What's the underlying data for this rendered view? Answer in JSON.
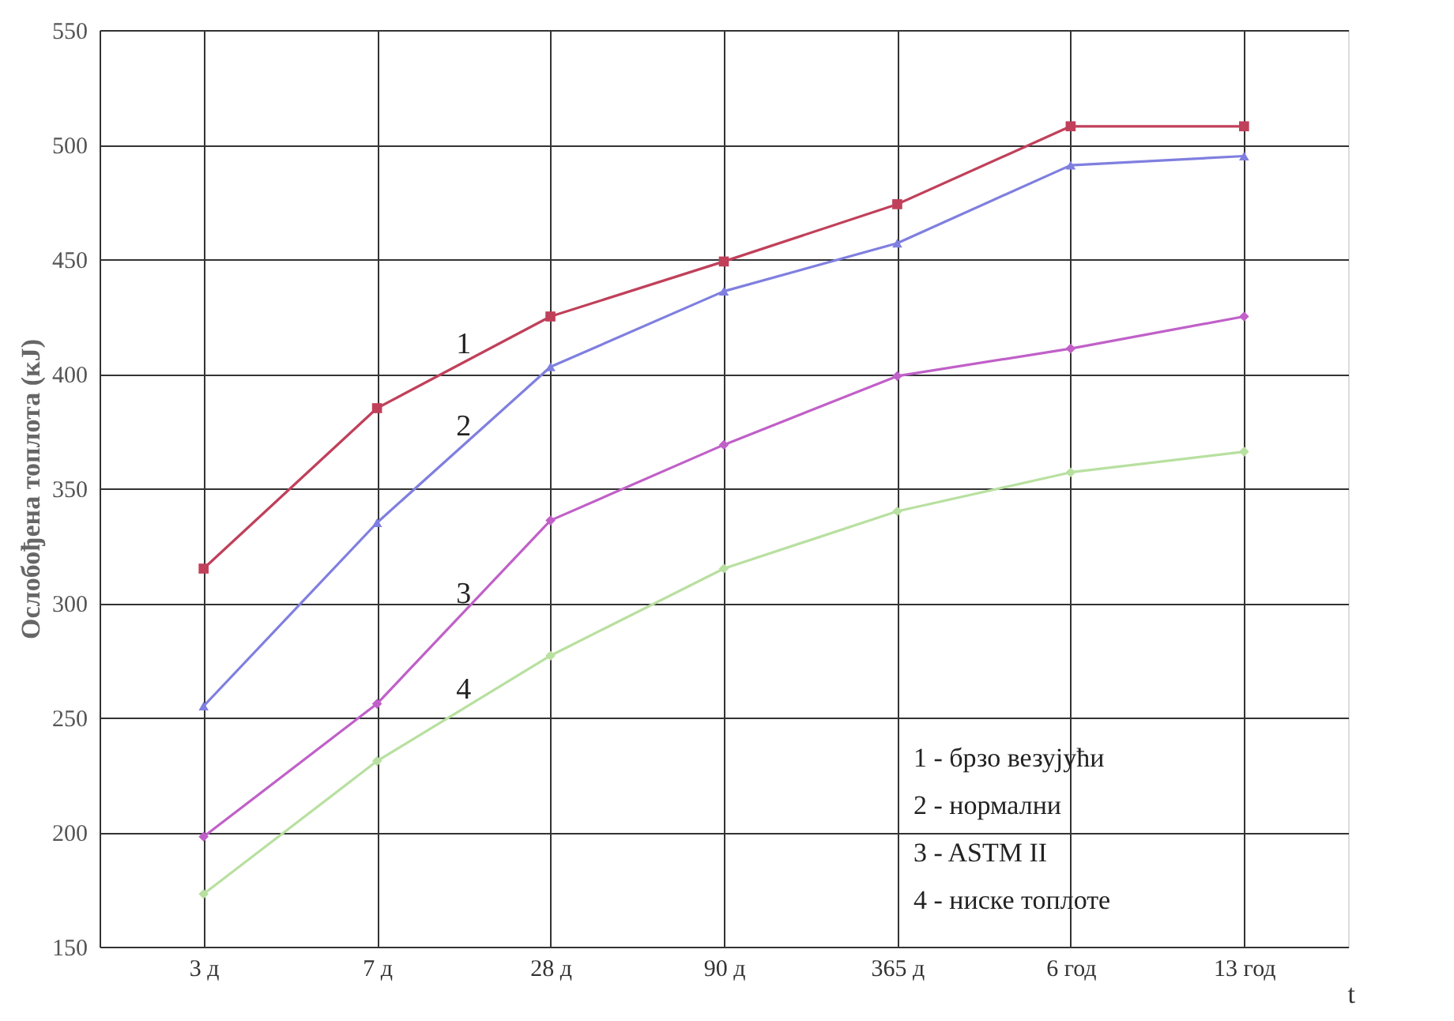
{
  "chart_data": {
    "type": "line",
    "ylabel": "Ослобођена топлота (кЈ)",
    "xlabel": "t",
    "categories": [
      "3 д",
      "7 д",
      "28 д",
      "90 д",
      "365 д",
      "6 год",
      "13 год"
    ],
    "series": [
      {
        "color": "#c0405a",
        "marker": "square",
        "values": [
          315,
          385,
          425,
          449,
          474,
          508,
          508
        ]
      },
      {
        "color": "#7f7fe0",
        "marker": "triangle",
        "values": [
          255,
          335,
          403,
          436,
          457,
          491,
          495
        ]
      },
      {
        "color": "#c060c8",
        "marker": "diamond",
        "values": [
          198,
          256,
          336,
          369,
          399,
          411,
          425
        ]
      },
      {
        "color": "#b8e0a0",
        "marker": "diamond",
        "values": [
          173,
          231,
          277,
          315,
          340,
          357,
          366
        ]
      }
    ],
    "ylim": [
      150,
      550
    ],
    "yticks": [
      150,
      200,
      250,
      300,
      350,
      400,
      450,
      500,
      550
    ],
    "grid": true,
    "line_style": "solid",
    "annotations": [
      {
        "text": "1",
        "y": 405
      },
      {
        "text": "2",
        "y": 369
      },
      {
        "text": "3",
        "y": 296
      },
      {
        "text": "4",
        "y": 254
      },
      "1 - брзо везујући",
      "2 - нормални",
      "3 - ASTM II",
      "4 - ниске топлоте"
    ]
  }
}
